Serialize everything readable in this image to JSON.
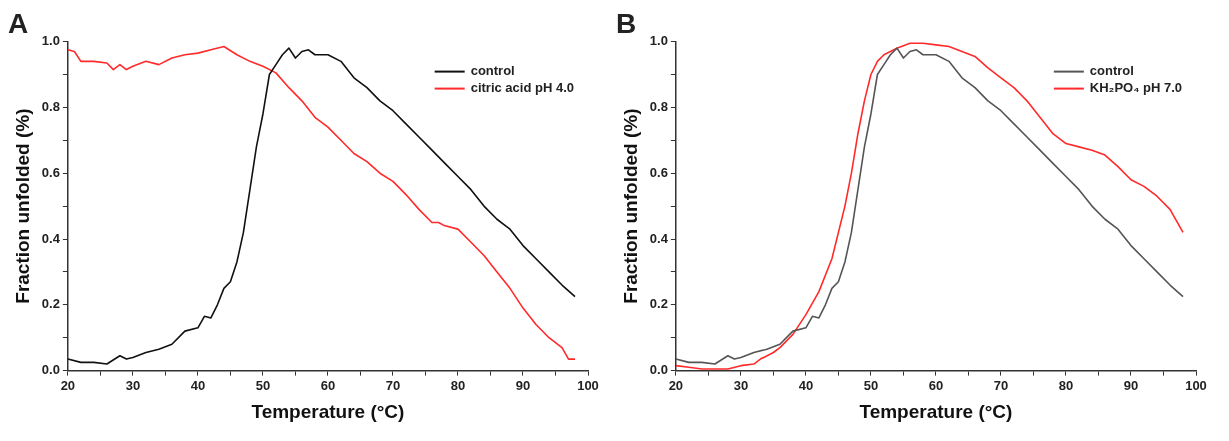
{
  "chart_data": [
    {
      "type": "line",
      "title": "A",
      "xlabel": "Temperature (°C)",
      "ylabel": "Fraction unfolded (%)",
      "xlim": [
        20,
        100
      ],
      "ylim": [
        0,
        1.0
      ],
      "xticks": [
        20,
        {
          "value": 25,
          "label": null
        },
        30,
        {
          "value": 35,
          "label": null
        },
        40,
        {
          "value": 45,
          "label": null
        },
        50,
        {
          "value": 55,
          "label": null
        },
        60,
        {
          "value": 65,
          "label": null
        },
        70,
        {
          "value": 75,
          "label": null
        },
        80,
        {
          "value": 85,
          "label": null
        },
        90,
        {
          "value": 95,
          "label": null
        },
        100
      ],
      "yticks": [
        {
          "value": 0,
          "label": "0.0"
        },
        {
          "value": 0.1,
          "label": null
        },
        {
          "value": 0.2,
          "label": "0.2"
        },
        {
          "value": 0.3,
          "label": null
        },
        {
          "value": 0.4,
          "label": "0.4"
        },
        {
          "value": 0.5,
          "label": null
        },
        {
          "value": 0.6,
          "label": "0.6"
        },
        {
          "value": 0.7,
          "label": null
        },
        {
          "value": 0.8,
          "label": "0.8"
        },
        {
          "value": 0.9,
          "label": null
        },
        {
          "value": 1.0,
          "label": "1.0"
        }
      ],
      "grid": false,
      "legend": "top right",
      "marker": "none",
      "line_style": "solid",
      "series": [
        {
          "name": "control",
          "color": "#111111",
          "x": [
            20,
            22,
            24,
            26,
            28,
            29,
            30,
            32,
            34,
            36,
            38,
            40,
            41,
            42,
            43,
            44,
            45,
            46,
            47,
            48,
            49,
            50,
            51,
            52,
            53,
            54,
            55,
            56,
            57,
            58,
            60,
            62,
            64,
            66,
            68,
            70,
            72,
            74,
            76,
            78,
            80,
            82,
            84,
            86,
            88,
            90,
            92,
            94,
            96,
            98
          ],
          "values": [
            0.035,
            0.025,
            0.025,
            0.02,
            0.045,
            0.035,
            0.04,
            0.055,
            0.065,
            0.08,
            0.12,
            0.13,
            0.165,
            0.16,
            0.2,
            0.25,
            0.27,
            0.33,
            0.42,
            0.55,
            0.68,
            0.78,
            0.9,
            0.93,
            0.96,
            0.98,
            0.95,
            0.97,
            0.975,
            0.96,
            0.96,
            0.94,
            0.89,
            0.86,
            0.82,
            0.79,
            0.75,
            0.71,
            0.67,
            0.63,
            0.59,
            0.55,
            0.5,
            0.46,
            0.43,
            0.38,
            0.34,
            0.3,
            0.26,
            0.225
          ]
        },
        {
          "name": "citric acid pH 4.0",
          "color": "#ff2a2a",
          "x": [
            20,
            21,
            22,
            24,
            26,
            27,
            28,
            29,
            30,
            32,
            34,
            36,
            38,
            40,
            42,
            44,
            46,
            48,
            50,
            52,
            54,
            56,
            58,
            60,
            62,
            64,
            66,
            68,
            70,
            72,
            74,
            76,
            77,
            78,
            80,
            82,
            84,
            86,
            88,
            90,
            92,
            94,
            96,
            97,
            98
          ],
          "values": [
            0.975,
            0.97,
            0.94,
            0.94,
            0.935,
            0.915,
            0.93,
            0.915,
            0.925,
            0.94,
            0.93,
            0.95,
            0.96,
            0.965,
            0.975,
            0.985,
            0.96,
            0.94,
            0.925,
            0.905,
            0.86,
            0.82,
            0.77,
            0.74,
            0.7,
            0.66,
            0.635,
            0.6,
            0.575,
            0.535,
            0.49,
            0.45,
            0.45,
            0.44,
            0.43,
            0.39,
            0.35,
            0.3,
            0.25,
            0.19,
            0.14,
            0.1,
            0.07,
            0.035,
            0.035
          ]
        }
      ]
    },
    {
      "type": "line",
      "title": "B",
      "xlabel": "Temperature (°C)",
      "ylabel": "Fraction unfolded (%)",
      "xlim": [
        20,
        100
      ],
      "ylim": [
        0,
        1.0
      ],
      "xticks": [
        20,
        {
          "value": 25,
          "label": null
        },
        30,
        {
          "value": 35,
          "label": null
        },
        40,
        {
          "value": 45,
          "label": null
        },
        50,
        {
          "value": 55,
          "label": null
        },
        60,
        {
          "value": 65,
          "label": null
        },
        70,
        {
          "value": 75,
          "label": null
        },
        80,
        {
          "value": 85,
          "label": null
        },
        90,
        {
          "value": 95,
          "label": null
        },
        100
      ],
      "yticks": [
        {
          "value": 0,
          "label": "0.0"
        },
        {
          "value": 0.1,
          "label": null
        },
        {
          "value": 0.2,
          "label": "0.2"
        },
        {
          "value": 0.3,
          "label": null
        },
        {
          "value": 0.4,
          "label": "0.4"
        },
        {
          "value": 0.5,
          "label": null
        },
        {
          "value": 0.6,
          "label": "0.6"
        },
        {
          "value": 0.7,
          "label": null
        },
        {
          "value": 0.8,
          "label": "0.8"
        },
        {
          "value": 0.9,
          "label": null
        },
        {
          "value": 1.0,
          "label": "1.0"
        }
      ],
      "grid": false,
      "legend": "top right",
      "marker": "none",
      "line_style": "solid",
      "series": [
        {
          "name": "control",
          "color": "#555555",
          "x": [
            20,
            22,
            24,
            26,
            28,
            29,
            30,
            32,
            34,
            36,
            38,
            40,
            41,
            42,
            43,
            44,
            45,
            46,
            47,
            48,
            49,
            50,
            51,
            52,
            53,
            54,
            55,
            56,
            57,
            58,
            60,
            62,
            64,
            66,
            68,
            70,
            72,
            74,
            76,
            78,
            80,
            82,
            84,
            86,
            88,
            90,
            92,
            94,
            96,
            98
          ],
          "values": [
            0.035,
            0.025,
            0.025,
            0.02,
            0.045,
            0.035,
            0.04,
            0.055,
            0.065,
            0.08,
            0.12,
            0.13,
            0.165,
            0.16,
            0.2,
            0.25,
            0.27,
            0.33,
            0.42,
            0.55,
            0.68,
            0.78,
            0.9,
            0.93,
            0.96,
            0.98,
            0.95,
            0.97,
            0.975,
            0.96,
            0.96,
            0.94,
            0.89,
            0.86,
            0.82,
            0.79,
            0.75,
            0.71,
            0.67,
            0.63,
            0.59,
            0.55,
            0.5,
            0.46,
            0.43,
            0.38,
            0.34,
            0.3,
            0.26,
            0.225
          ]
        },
        {
          "name": "KH₂PO₄ pH 7.0",
          "color": "#ff2a2a",
          "x": [
            20,
            22,
            24,
            26,
            28,
            30,
            32,
            33,
            35,
            36,
            38,
            40,
            42,
            44,
            46,
            47,
            48,
            49,
            50,
            51,
            52,
            54,
            56,
            58,
            60,
            62,
            64,
            66,
            68,
            70,
            72,
            74,
            76,
            78,
            80,
            82,
            84,
            86,
            88,
            90,
            92,
            94,
            96,
            98
          ],
          "values": [
            0.015,
            0.01,
            0.005,
            0.005,
            0.005,
            0.015,
            0.02,
            0.035,
            0.055,
            0.07,
            0.11,
            0.17,
            0.24,
            0.34,
            0.5,
            0.6,
            0.72,
            0.82,
            0.9,
            0.94,
            0.96,
            0.98,
            0.995,
            0.995,
            0.99,
            0.985,
            0.97,
            0.955,
            0.92,
            0.89,
            0.86,
            0.82,
            0.77,
            0.72,
            0.69,
            0.68,
            0.67,
            0.655,
            0.62,
            0.58,
            0.56,
            0.53,
            0.49,
            0.42
          ]
        }
      ]
    }
  ]
}
